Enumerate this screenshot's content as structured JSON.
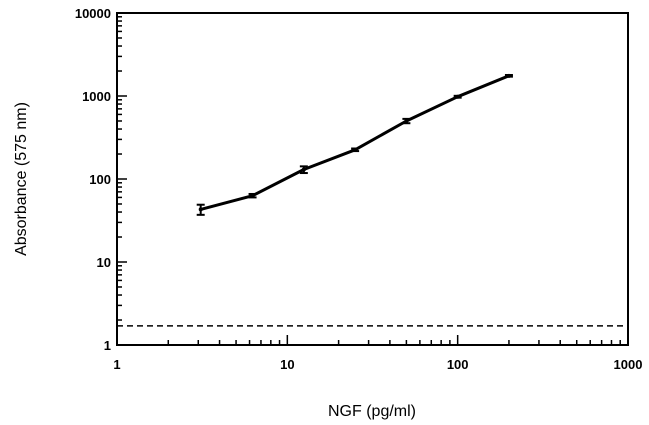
{
  "chart_data": {
    "type": "line",
    "title": "",
    "xlabel": "NGF (pg/ml)",
    "ylabel": "Absorbance (575 nm)",
    "x_scale": "log",
    "y_scale": "log",
    "xlim": [
      1,
      1000
    ],
    "ylim": [
      1,
      10000
    ],
    "x_ticks": [
      "1",
      "10",
      "100",
      "1000"
    ],
    "y_ticks": [
      "1",
      "10",
      "100",
      "1000",
      "10000"
    ],
    "grid": false,
    "legend": "none",
    "series": [
      {
        "x": [
          3.1,
          6.25,
          12.5,
          25,
          50,
          100,
          200
        ],
        "y": [
          43,
          63,
          130,
          225,
          500,
          980,
          1750
        ],
        "error": [
          6,
          3,
          12,
          8,
          30,
          25,
          40
        ],
        "color": "#000000"
      }
    ],
    "reference_lines": [
      {
        "y": 1.7,
        "style": "dashed",
        "color": "#000000"
      }
    ]
  }
}
